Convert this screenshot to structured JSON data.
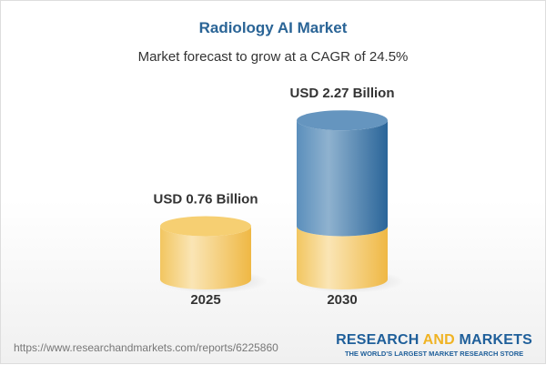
{
  "header": {
    "title": "Radiology AI Market",
    "subtitle": "Market forecast to grow at a CAGR of 24.5%"
  },
  "chart_data": {
    "type": "bar",
    "style": "3d-cylinder",
    "categories": [
      "2025",
      "2030"
    ],
    "values": [
      0.76,
      2.27
    ],
    "unit": "USD Billion",
    "data_labels": [
      "USD 0.76 Billion",
      "USD 2.27 Billion"
    ],
    "colors": {
      "base": "#f3c55a",
      "growth": "#3d78aa"
    }
  },
  "footer": {
    "url": "https://www.researchandmarkets.com/reports/6225860",
    "logo": {
      "word1": "RESEARCH",
      "word2": "AND",
      "word3": "MARKETS",
      "tagline": "THE WORLD'S LARGEST MARKET RESEARCH STORE"
    }
  }
}
